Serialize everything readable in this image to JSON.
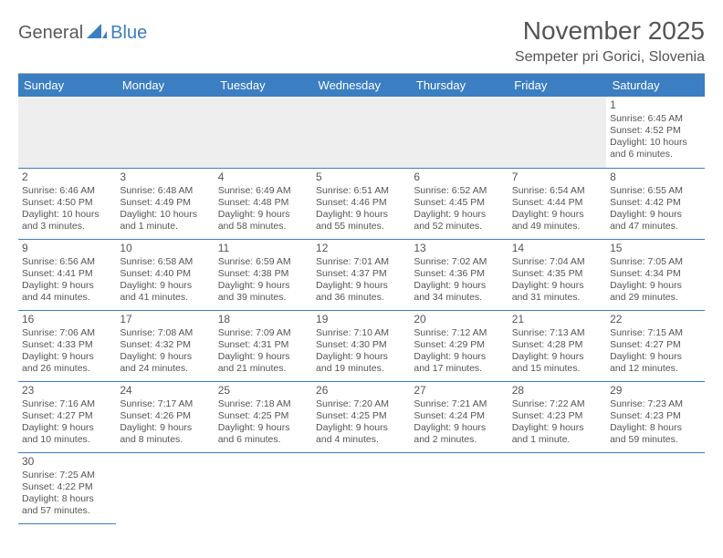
{
  "logo": {
    "part1": "General",
    "part2": "Blue"
  },
  "title": "November 2025",
  "location": "Sempeter pri Gorici, Slovenia",
  "colors": {
    "header_bg": "#3b7ec1",
    "header_text": "#ffffff",
    "text": "#555555",
    "pad_bg": "#eeeeee",
    "rule": "#3b7ec1"
  },
  "weekdays": [
    "Sunday",
    "Monday",
    "Tuesday",
    "Wednesday",
    "Thursday",
    "Friday",
    "Saturday"
  ],
  "weeks": [
    [
      null,
      null,
      null,
      null,
      null,
      null,
      {
        "n": "1",
        "sr": "Sunrise: 6:45 AM",
        "ss": "Sunset: 4:52 PM",
        "dl1": "Daylight: 10 hours",
        "dl2": "and 6 minutes."
      }
    ],
    [
      {
        "n": "2",
        "sr": "Sunrise: 6:46 AM",
        "ss": "Sunset: 4:50 PM",
        "dl1": "Daylight: 10 hours",
        "dl2": "and 3 minutes."
      },
      {
        "n": "3",
        "sr": "Sunrise: 6:48 AM",
        "ss": "Sunset: 4:49 PM",
        "dl1": "Daylight: 10 hours",
        "dl2": "and 1 minute."
      },
      {
        "n": "4",
        "sr": "Sunrise: 6:49 AM",
        "ss": "Sunset: 4:48 PM",
        "dl1": "Daylight: 9 hours",
        "dl2": "and 58 minutes."
      },
      {
        "n": "5",
        "sr": "Sunrise: 6:51 AM",
        "ss": "Sunset: 4:46 PM",
        "dl1": "Daylight: 9 hours",
        "dl2": "and 55 minutes."
      },
      {
        "n": "6",
        "sr": "Sunrise: 6:52 AM",
        "ss": "Sunset: 4:45 PM",
        "dl1": "Daylight: 9 hours",
        "dl2": "and 52 minutes."
      },
      {
        "n": "7",
        "sr": "Sunrise: 6:54 AM",
        "ss": "Sunset: 4:44 PM",
        "dl1": "Daylight: 9 hours",
        "dl2": "and 49 minutes."
      },
      {
        "n": "8",
        "sr": "Sunrise: 6:55 AM",
        "ss": "Sunset: 4:42 PM",
        "dl1": "Daylight: 9 hours",
        "dl2": "and 47 minutes."
      }
    ],
    [
      {
        "n": "9",
        "sr": "Sunrise: 6:56 AM",
        "ss": "Sunset: 4:41 PM",
        "dl1": "Daylight: 9 hours",
        "dl2": "and 44 minutes."
      },
      {
        "n": "10",
        "sr": "Sunrise: 6:58 AM",
        "ss": "Sunset: 4:40 PM",
        "dl1": "Daylight: 9 hours",
        "dl2": "and 41 minutes."
      },
      {
        "n": "11",
        "sr": "Sunrise: 6:59 AM",
        "ss": "Sunset: 4:38 PM",
        "dl1": "Daylight: 9 hours",
        "dl2": "and 39 minutes."
      },
      {
        "n": "12",
        "sr": "Sunrise: 7:01 AM",
        "ss": "Sunset: 4:37 PM",
        "dl1": "Daylight: 9 hours",
        "dl2": "and 36 minutes."
      },
      {
        "n": "13",
        "sr": "Sunrise: 7:02 AM",
        "ss": "Sunset: 4:36 PM",
        "dl1": "Daylight: 9 hours",
        "dl2": "and 34 minutes."
      },
      {
        "n": "14",
        "sr": "Sunrise: 7:04 AM",
        "ss": "Sunset: 4:35 PM",
        "dl1": "Daylight: 9 hours",
        "dl2": "and 31 minutes."
      },
      {
        "n": "15",
        "sr": "Sunrise: 7:05 AM",
        "ss": "Sunset: 4:34 PM",
        "dl1": "Daylight: 9 hours",
        "dl2": "and 29 minutes."
      }
    ],
    [
      {
        "n": "16",
        "sr": "Sunrise: 7:06 AM",
        "ss": "Sunset: 4:33 PM",
        "dl1": "Daylight: 9 hours",
        "dl2": "and 26 minutes."
      },
      {
        "n": "17",
        "sr": "Sunrise: 7:08 AM",
        "ss": "Sunset: 4:32 PM",
        "dl1": "Daylight: 9 hours",
        "dl2": "and 24 minutes."
      },
      {
        "n": "18",
        "sr": "Sunrise: 7:09 AM",
        "ss": "Sunset: 4:31 PM",
        "dl1": "Daylight: 9 hours",
        "dl2": "and 21 minutes."
      },
      {
        "n": "19",
        "sr": "Sunrise: 7:10 AM",
        "ss": "Sunset: 4:30 PM",
        "dl1": "Daylight: 9 hours",
        "dl2": "and 19 minutes."
      },
      {
        "n": "20",
        "sr": "Sunrise: 7:12 AM",
        "ss": "Sunset: 4:29 PM",
        "dl1": "Daylight: 9 hours",
        "dl2": "and 17 minutes."
      },
      {
        "n": "21",
        "sr": "Sunrise: 7:13 AM",
        "ss": "Sunset: 4:28 PM",
        "dl1": "Daylight: 9 hours",
        "dl2": "and 15 minutes."
      },
      {
        "n": "22",
        "sr": "Sunrise: 7:15 AM",
        "ss": "Sunset: 4:27 PM",
        "dl1": "Daylight: 9 hours",
        "dl2": "and 12 minutes."
      }
    ],
    [
      {
        "n": "23",
        "sr": "Sunrise: 7:16 AM",
        "ss": "Sunset: 4:27 PM",
        "dl1": "Daylight: 9 hours",
        "dl2": "and 10 minutes."
      },
      {
        "n": "24",
        "sr": "Sunrise: 7:17 AM",
        "ss": "Sunset: 4:26 PM",
        "dl1": "Daylight: 9 hours",
        "dl2": "and 8 minutes."
      },
      {
        "n": "25",
        "sr": "Sunrise: 7:18 AM",
        "ss": "Sunset: 4:25 PM",
        "dl1": "Daylight: 9 hours",
        "dl2": "and 6 minutes."
      },
      {
        "n": "26",
        "sr": "Sunrise: 7:20 AM",
        "ss": "Sunset: 4:25 PM",
        "dl1": "Daylight: 9 hours",
        "dl2": "and 4 minutes."
      },
      {
        "n": "27",
        "sr": "Sunrise: 7:21 AM",
        "ss": "Sunset: 4:24 PM",
        "dl1": "Daylight: 9 hours",
        "dl2": "and 2 minutes."
      },
      {
        "n": "28",
        "sr": "Sunrise: 7:22 AM",
        "ss": "Sunset: 4:23 PM",
        "dl1": "Daylight: 9 hours",
        "dl2": "and 1 minute."
      },
      {
        "n": "29",
        "sr": "Sunrise: 7:23 AM",
        "ss": "Sunset: 4:23 PM",
        "dl1": "Daylight: 8 hours",
        "dl2": "and 59 minutes."
      }
    ],
    [
      {
        "n": "30",
        "sr": "Sunrise: 7:25 AM",
        "ss": "Sunset: 4:22 PM",
        "dl1": "Daylight: 8 hours",
        "dl2": "and 57 minutes."
      },
      null,
      null,
      null,
      null,
      null,
      null
    ]
  ]
}
